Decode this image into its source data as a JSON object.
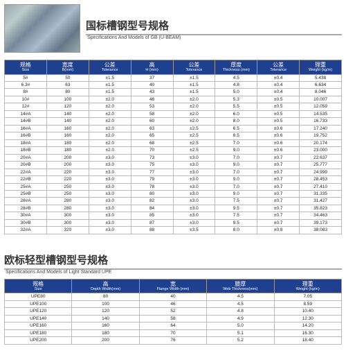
{
  "section1": {
    "title_cn": "国标槽钢型号规格",
    "title_en": "Specifications And Models of GB (U-BEAM)",
    "columns": [
      {
        "cn": "规格",
        "en": "Size"
      },
      {
        "cn": "宽度",
        "en": "B(mm)"
      },
      {
        "cn": "公差",
        "en": "Tolerance"
      },
      {
        "cn": "高",
        "en": "H (mm)"
      },
      {
        "cn": "公差",
        "en": "Tolerance"
      },
      {
        "cn": "厚度",
        "en": "Thickness (mm)"
      },
      {
        "cn": "公差",
        "en": "Tolerance"
      },
      {
        "cn": "理重",
        "en": "Weight (kg/m)"
      }
    ],
    "rows": [
      [
        "5#",
        "50",
        "±1.5",
        "37",
        "±1.5",
        "4.5",
        "±0.4",
        "5.438"
      ],
      [
        "6.3#",
        "63",
        "±1.5",
        "40",
        "±1.5",
        "4.8",
        "±0.4",
        "6.634"
      ],
      [
        "8#",
        "80",
        "±1.5",
        "43",
        "±1.5",
        "5.0",
        "±0.4",
        "8.046"
      ],
      [
        "10#",
        "100",
        "±2.0",
        "48",
        "±2.0",
        "5.3",
        "±0.5",
        "10.007"
      ],
      [
        "12#",
        "120",
        "±2.0",
        "53",
        "±2.0",
        "5.5",
        "±0.5",
        "12.059"
      ],
      [
        "14#A",
        "140",
        "±2.0",
        "58",
        "±2.0",
        "6.0",
        "±0.5",
        "14.535"
      ],
      [
        "14#B",
        "140",
        "±2.0",
        "60",
        "±2.0",
        "8.0",
        "±0.5",
        "16.733"
      ],
      [
        "16#A",
        "160",
        "±2.0",
        "63",
        "±2.5",
        "6.5",
        "±0.6",
        "17.240"
      ],
      [
        "16#B",
        "160",
        "±2.0",
        "65",
        "±2.5",
        "8.5",
        "±0.6",
        "19.752"
      ],
      [
        "18#A",
        "180",
        "±2.0",
        "68",
        "±2.5",
        "7.0",
        "±0.6",
        "20.174"
      ],
      [
        "18#B",
        "180",
        "±2.0",
        "70",
        "±2.5",
        "9.0",
        "±0.6",
        "23.000"
      ],
      [
        "20#A",
        "200",
        "±3.0",
        "73",
        "±3.0",
        "7.0",
        "±0.7",
        "22.637"
      ],
      [
        "20#B",
        "200",
        "±3.0",
        "75",
        "±3.0",
        "9.0",
        "±0.7",
        "25.777"
      ],
      [
        "22#A",
        "220",
        "±3.0",
        "77",
        "±3.0",
        "7.0",
        "±0.7",
        "24.999"
      ],
      [
        "22#B",
        "220",
        "±3.0",
        "79",
        "±3.0",
        "9.0",
        "±0.7",
        "28.453"
      ],
      [
        "25#A",
        "250",
        "±3.0",
        "78",
        "±3.0",
        "7.0",
        "±0.7",
        "27.410"
      ],
      [
        "25#B",
        "250",
        "±3.0",
        "80",
        "±3.0",
        "9.0",
        "±0.7",
        "31.335"
      ],
      [
        "28#A",
        "280",
        "±3.0",
        "82",
        "±3.0",
        "7.5",
        "±0.7",
        "31.427"
      ],
      [
        "28#B",
        "280",
        "±3.0",
        "84",
        "±3.0",
        "9.5",
        "±0.7",
        "35.823"
      ],
      [
        "30#A",
        "300",
        "±3.0",
        "85",
        "±3.0",
        "7.5",
        "±0.7",
        "34.463"
      ],
      [
        "30#B",
        "300",
        "±3.0",
        "87",
        "±3.0",
        "9.5",
        "±0.7",
        "39.173"
      ],
      [
        "32#A",
        "320",
        "±3.0",
        "88",
        "±3.5",
        "8.0",
        "±0.8",
        "38.083"
      ]
    ]
  },
  "section2": {
    "title_cn": "欧标轻型槽钢型号规格",
    "title_en": "Specifications And Models of Light Standard UPE",
    "columns": [
      {
        "cn": "规格",
        "en": "Size"
      },
      {
        "cn": "高",
        "en": "Depth Width(mm)"
      },
      {
        "cn": "宽",
        "en": "Flange Width (mm)"
      },
      {
        "cn": "腰厚",
        "en": "Web Thickness(mm)"
      },
      {
        "cn": "理重",
        "en": "Weight (kg/m)"
      }
    ],
    "rows": [
      [
        "UPE80",
        "80",
        "40",
        "4.5",
        "7.05"
      ],
      [
        "UPE100",
        "100",
        "46",
        "4.5",
        "8.59"
      ],
      [
        "UPE120",
        "120",
        "52",
        "4.8",
        "10.40"
      ],
      [
        "UPE140",
        "140",
        "58",
        "4.9",
        "12.30"
      ],
      [
        "UPE160",
        "160",
        "64",
        "5.0",
        "14.20"
      ],
      [
        "UPE180",
        "180",
        "70",
        "5.1",
        "16.30"
      ],
      [
        "UPE200",
        "200",
        "76",
        "5.2",
        "18.40"
      ]
    ]
  },
  "style": {
    "header_bg": "#1f3f8f",
    "header_fg": "#ffffff",
    "border": "#bbbbbb",
    "title_fontsize": 15,
    "cell_fontsize": 6.5
  }
}
